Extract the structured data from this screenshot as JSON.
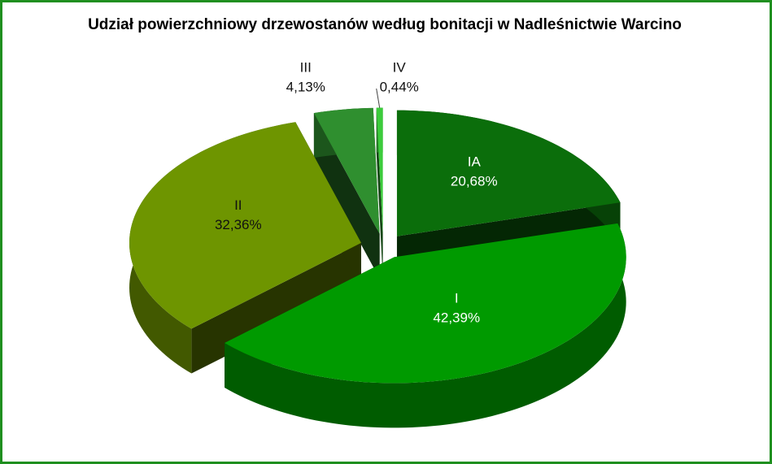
{
  "chart_data": {
    "type": "pie",
    "title": "Udział powierzchniowy drzewostanów według bonitacji w Nadleśnictwie Warcino",
    "categories": [
      "IA",
      "I",
      "II",
      "III",
      "IV"
    ],
    "values": [
      20.68,
      42.39,
      32.36,
      4.13,
      0.44
    ],
    "value_labels": [
      "20,68%",
      "42,39%",
      "32,36%",
      "4,13%",
      "0,44%"
    ],
    "colors": [
      "#0b6e0b",
      "#009a00",
      "#6e9500",
      "#2f8f2f",
      "#3ccc3c"
    ]
  }
}
